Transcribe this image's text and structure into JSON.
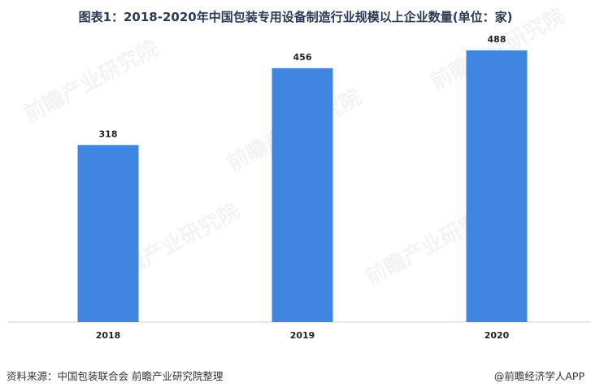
{
  "chart_data": {
    "type": "bar",
    "title": "图表1：2018-2020年中国包装专用设备制造行业规模以上企业数量(单位：家)",
    "categories": [
      "2018",
      "2019",
      "2020"
    ],
    "values": [
      318,
      456,
      488
    ],
    "ylim": [
      0,
      520
    ],
    "grid": false,
    "legend": "none",
    "bar_color": "#3f86e0"
  },
  "footer": {
    "source": "资料来源：中国包装联合会 前瞻产业研究院整理",
    "brand": "@前瞻经济学人APP"
  },
  "watermark_text": "前瞻产业研究院"
}
